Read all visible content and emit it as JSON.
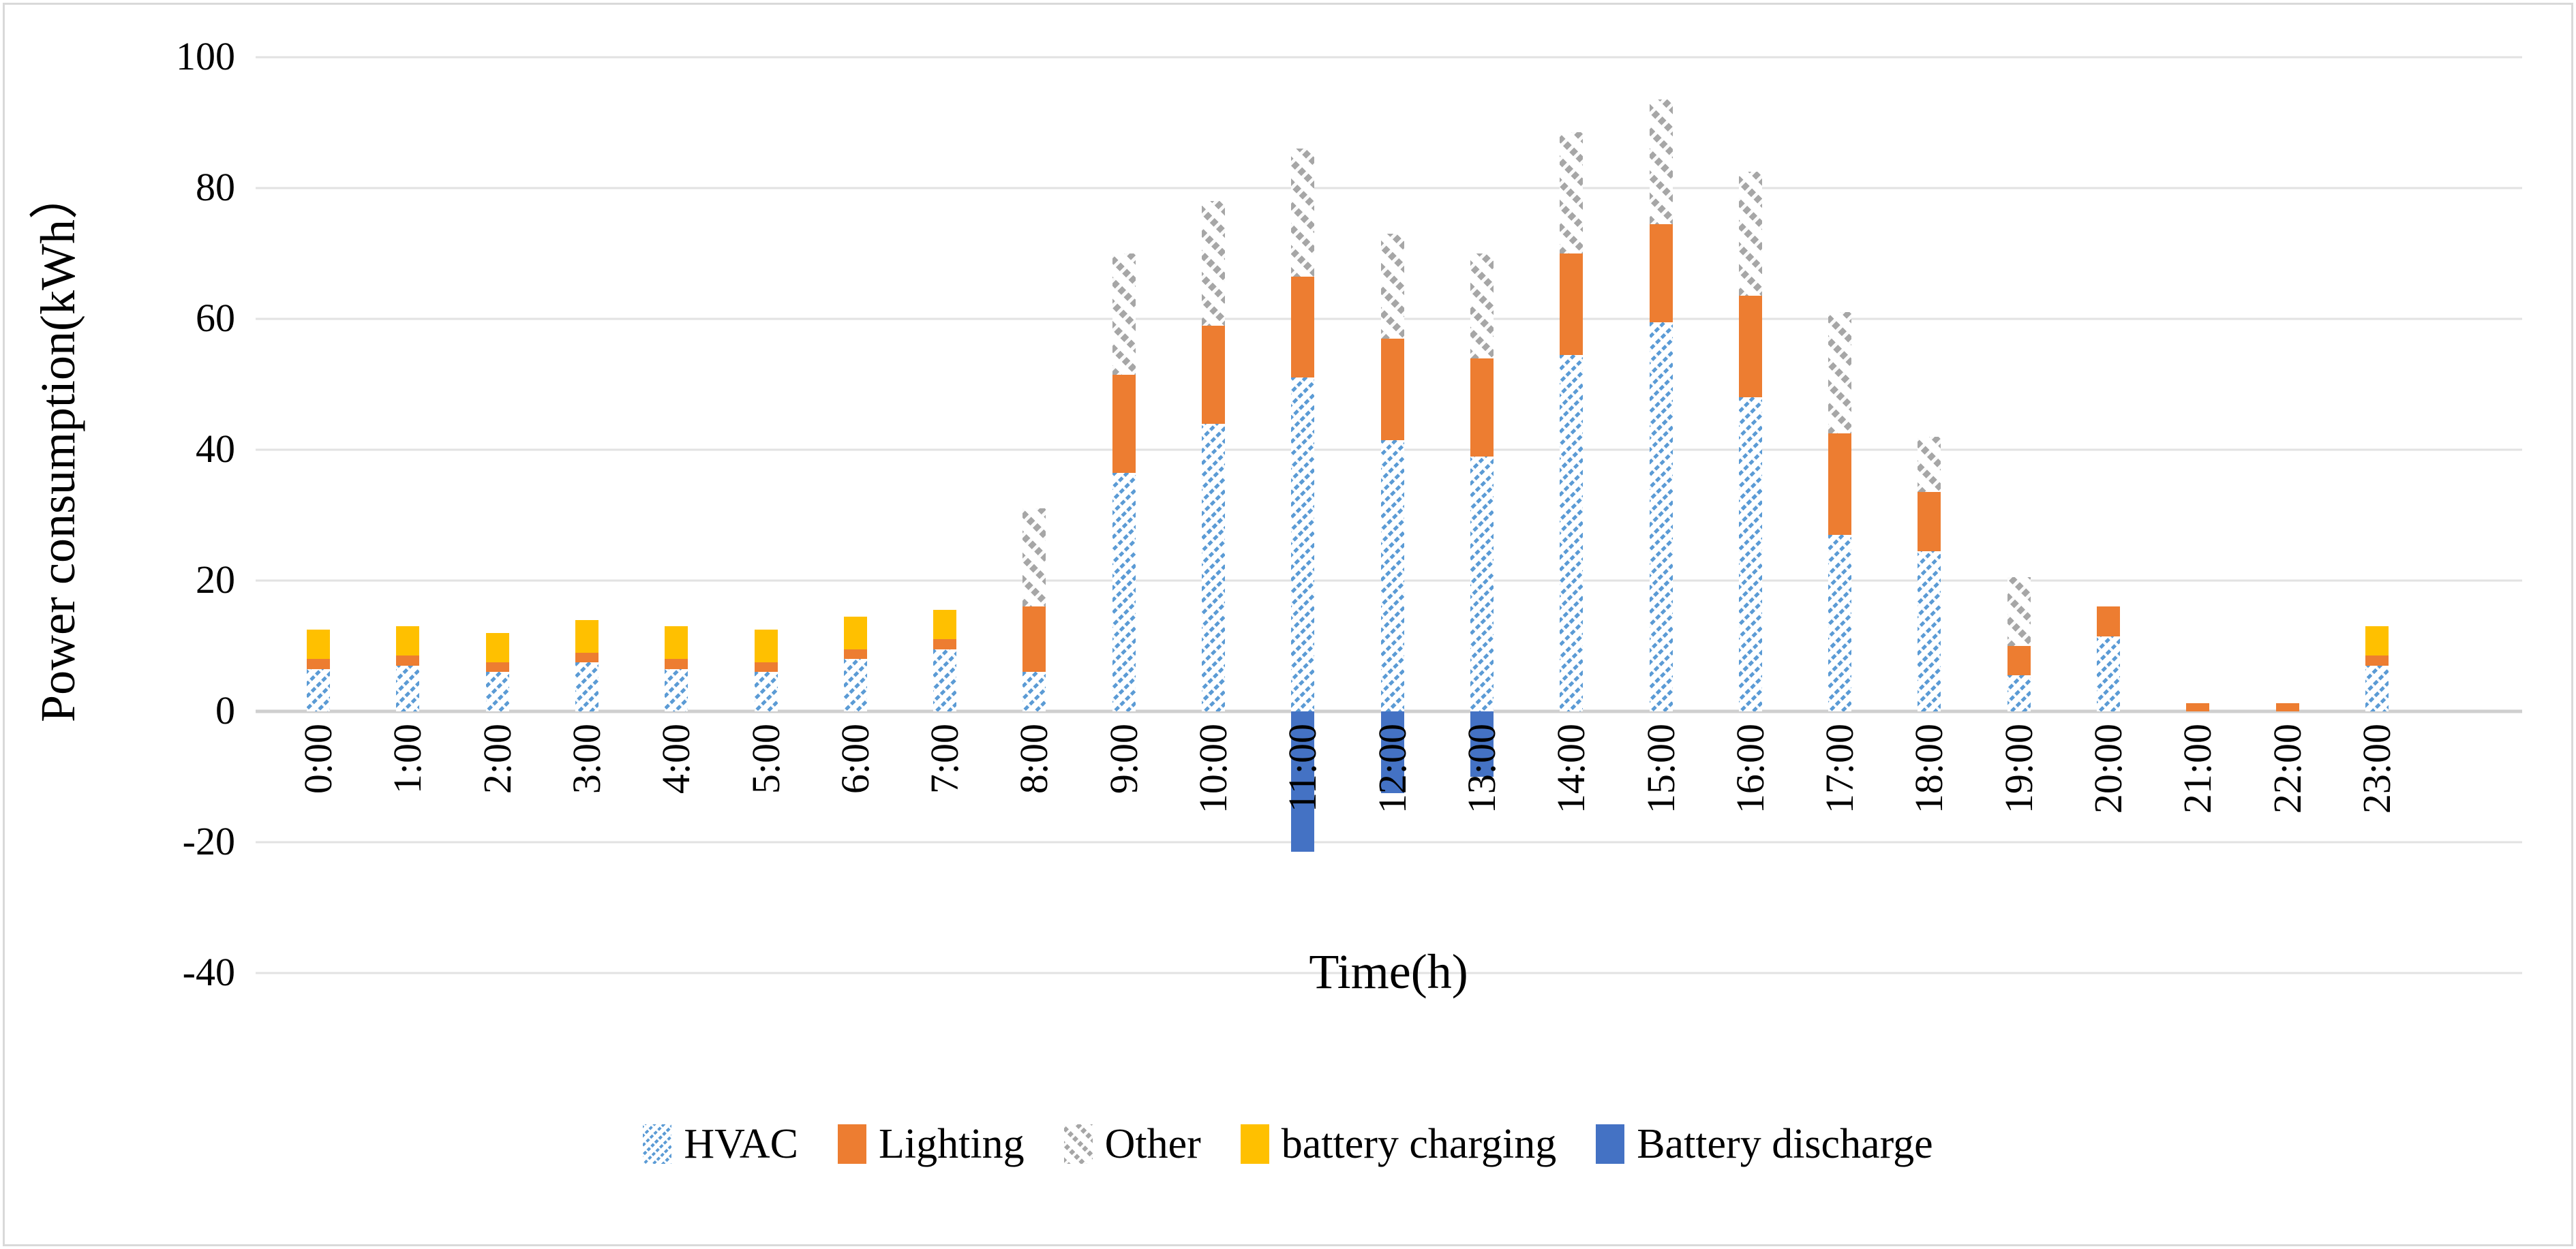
{
  "axes": {
    "x_title": "Time(h)",
    "y_title": "Power consumption(kWh）"
  },
  "chart_data": {
    "type": "bar",
    "stacked": true,
    "title": "",
    "xlabel": "Time(h)",
    "ylabel": "Power consumption(kWh）",
    "ylim": [
      -40,
      100
    ],
    "yticks": [
      100,
      80,
      60,
      40,
      20,
      0,
      -20,
      -40
    ],
    "grid": true,
    "legend_position": "bottom",
    "categories": [
      "0:00",
      "1:00",
      "2:00",
      "3:00",
      "4:00",
      "5:00",
      "6:00",
      "7:00",
      "8:00",
      "9:00",
      "10:00",
      "11:00",
      "12:00",
      "13:00",
      "14:00",
      "15:00",
      "16:00",
      "17:00",
      "18:00",
      "19:00",
      "20:00",
      "21:00",
      "22:00",
      "23:00"
    ],
    "series": [
      {
        "name": "HVAC",
        "color": "#5B9BD5",
        "pattern": "thin-dashed-diagonal-up-hatch",
        "values": [
          6.5,
          7,
          6,
          7.5,
          6.5,
          6,
          8,
          9.5,
          6,
          36.5,
          44,
          51,
          41.5,
          39,
          54.5,
          59.5,
          48,
          27,
          24.5,
          5.5,
          11.5,
          0,
          0,
          7
        ]
      },
      {
        "name": "Lighting",
        "color": "#ED7D31",
        "pattern": "solid",
        "values": [
          1.5,
          1.5,
          1.5,
          1.5,
          1.5,
          1.5,
          1.5,
          1.5,
          10,
          15,
          15,
          15.5,
          15.5,
          15,
          15.5,
          15,
          15.5,
          15.5,
          9,
          4.5,
          4.5,
          1.3,
          1.3,
          1.5
        ]
      },
      {
        "name": "Other",
        "color": "#A5A5A5",
        "pattern": "wide-dashed-diagonal-down-hatch",
        "values": [
          0,
          0,
          0,
          0,
          0,
          0,
          0,
          0,
          15,
          18.5,
          19,
          19.5,
          16,
          16,
          18.5,
          19,
          19,
          18.5,
          8.5,
          10.5,
          0,
          0,
          0,
          0
        ]
      },
      {
        "name": "battery charging",
        "color": "#FFC000",
        "pattern": "solid",
        "values": [
          4.5,
          4.5,
          4.5,
          5,
          5,
          5,
          5,
          4.5,
          0,
          0,
          0,
          0,
          0,
          0,
          0,
          0,
          0,
          0,
          0,
          0,
          0,
          0,
          0,
          4.5
        ]
      },
      {
        "name": "Battery discharge",
        "color": "#4472C4",
        "pattern": "solid",
        "values": [
          0,
          0,
          0,
          0,
          0,
          0,
          0,
          0,
          0,
          0,
          0,
          -21.5,
          -12.5,
          -10,
          0,
          0,
          0,
          0,
          0,
          0,
          0,
          0,
          0,
          0
        ]
      }
    ]
  },
  "style": {
    "gridline_color": "#E2E2E2",
    "zero_axis_color": "#CFCFCF",
    "background": "#FFFFFF",
    "border_color": "#D9D9D9"
  }
}
